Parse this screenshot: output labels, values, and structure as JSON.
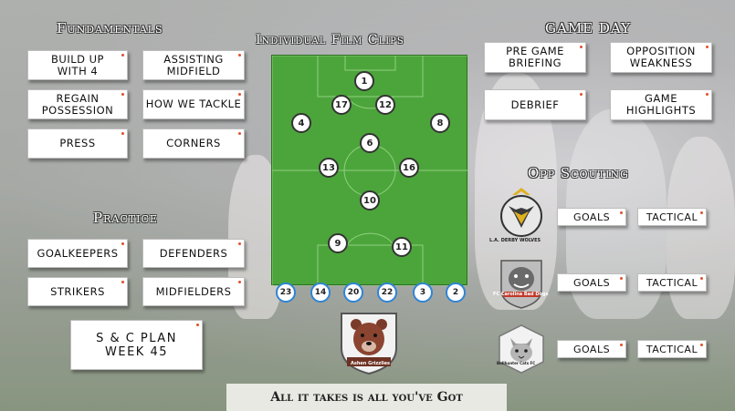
{
  "sections": {
    "fundamentals": {
      "title": "Fundamentals",
      "buttons": [
        "BUILD UP WITH 4",
        "ASSISTING MIDFIELD",
        "REGAIN POSSESSION",
        "HOW WE TACKLE",
        "PRESS",
        "CORNERS"
      ]
    },
    "practice": {
      "title": "Practice",
      "buttons": [
        "GOALKEEPERS",
        "DEFENDERS",
        "STRIKERS",
        "MIDFIELDERS"
      ]
    },
    "sc_plan": {
      "label": "S & C PLAN WEEK 45"
    },
    "film": {
      "title": "Individual Film Clips"
    },
    "game_day": {
      "title": "GAME DAY",
      "buttons": [
        "PRE GAME BRIEFING",
        "OPPOSITION WEAKNESS",
        "DEBRIEF",
        "GAME HIGHLIGHTS"
      ]
    },
    "opp_scouting": {
      "title": "Opp Scouting",
      "teams": [
        {
          "name": "L.A. DERBY WOLVES",
          "goals": "GOALS",
          "tactical": "TACTICAL"
        },
        {
          "name": "FC Carolina Bad Dogs",
          "goals": "GOALS",
          "tactical": "TACTICAL"
        },
        {
          "name": "Bullhunter Cats FC",
          "goals": "GOALS",
          "tactical": "TACTICAL"
        }
      ]
    }
  },
  "pitch_players": [
    "1",
    "17",
    "12",
    "4",
    "8",
    "6",
    "13",
    "16",
    "10",
    "9",
    "11"
  ],
  "bench_players": [
    "23",
    "14",
    "20",
    "22",
    "3",
    "2"
  ],
  "crest_text": "Ashen Grizzlies",
  "footer": "All it takes is all you've Got",
  "colors": {
    "pitch": "#4ca53b",
    "accent_dot": "#e0502a",
    "bench_ring": "#2e84d6"
  }
}
